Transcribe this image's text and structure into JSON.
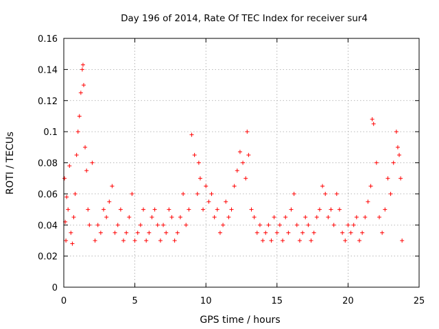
{
  "chart_data": {
    "type": "scatter",
    "title": "Day 196 of 2014, Rate Of TEC Index for receiver sur4",
    "xlabel": "GPS time / hours",
    "ylabel": "ROTI / TECUs",
    "xlim": [
      0,
      25
    ],
    "ylim": [
      0,
      0.16
    ],
    "xticks": [
      "0",
      "5",
      "10",
      "15",
      "20",
      "25"
    ],
    "yticks": [
      "0",
      "0.02",
      "0.04",
      "0.06",
      "0.08",
      "0.1",
      "0.12",
      "0.14",
      "0.16"
    ],
    "grid": true,
    "marker": "+",
    "color": "#ff0000",
    "series": [
      {
        "x": [
          0.05,
          0.1,
          0.15,
          0.2,
          0.3,
          0.4,
          0.5,
          0.6,
          0.7,
          0.8,
          0.9,
          1.0,
          1.1,
          1.2,
          1.3,
          1.35,
          1.4,
          1.5,
          1.6,
          1.7,
          1.8,
          2.0,
          2.2,
          2.4,
          2.6,
          2.8,
          3.0,
          3.2,
          3.4,
          3.6,
          3.8,
          4.0,
          4.2,
          4.4,
          4.6,
          4.8,
          5.0,
          5.2,
          5.4,
          5.6,
          5.8,
          6.0,
          6.2,
          6.4,
          6.6,
          6.8,
          7.0,
          7.2,
          7.4,
          7.6,
          7.8,
          8.0,
          8.2,
          8.4,
          8.6,
          8.8,
          9.0,
          9.2,
          9.4,
          9.5,
          9.6,
          9.8,
          10.0,
          10.2,
          10.4,
          10.6,
          10.8,
          11.0,
          11.2,
          11.4,
          11.6,
          11.8,
          12.0,
          12.2,
          12.4,
          12.6,
          12.8,
          12.9,
          13.0,
          13.2,
          13.4,
          13.6,
          13.8,
          14.0,
          14.2,
          14.4,
          14.6,
          14.8,
          15.0,
          15.2,
          15.4,
          15.6,
          15.8,
          16.0,
          16.2,
          16.4,
          16.6,
          16.8,
          17.0,
          17.2,
          17.4,
          17.6,
          17.8,
          18.0,
          18.2,
          18.4,
          18.6,
          18.8,
          19.0,
          19.2,
          19.4,
          19.6,
          19.8,
          20.0,
          20.2,
          20.4,
          20.6,
          20.8,
          21.0,
          21.2,
          21.4,
          21.6,
          21.7,
          21.8,
          22.0,
          22.2,
          22.4,
          22.6,
          22.8,
          23.0,
          23.2,
          23.4,
          23.5,
          23.6,
          23.7,
          23.8
        ],
        "y": [
          0.07,
          0.042,
          0.03,
          0.058,
          0.05,
          0.078,
          0.035,
          0.028,
          0.045,
          0.06,
          0.085,
          0.1,
          0.11,
          0.125,
          0.14,
          0.143,
          0.13,
          0.09,
          0.075,
          0.05,
          0.04,
          0.08,
          0.03,
          0.04,
          0.035,
          0.05,
          0.045,
          0.055,
          0.065,
          0.035,
          0.04,
          0.05,
          0.03,
          0.035,
          0.045,
          0.06,
          0.03,
          0.035,
          0.04,
          0.05,
          0.03,
          0.035,
          0.045,
          0.05,
          0.04,
          0.03,
          0.04,
          0.035,
          0.05,
          0.045,
          0.03,
          0.035,
          0.045,
          0.06,
          0.04,
          0.05,
          0.098,
          0.085,
          0.06,
          0.08,
          0.07,
          0.05,
          0.065,
          0.055,
          0.06,
          0.045,
          0.05,
          0.035,
          0.04,
          0.055,
          0.045,
          0.05,
          0.065,
          0.075,
          0.087,
          0.08,
          0.07,
          0.1,
          0.085,
          0.05,
          0.045,
          0.035,
          0.04,
          0.03,
          0.035,
          0.04,
          0.03,
          0.045,
          0.035,
          0.04,
          0.03,
          0.045,
          0.035,
          0.05,
          0.06,
          0.04,
          0.03,
          0.035,
          0.045,
          0.04,
          0.03,
          0.035,
          0.045,
          0.05,
          0.065,
          0.06,
          0.045,
          0.05,
          0.04,
          0.06,
          0.05,
          0.035,
          0.03,
          0.04,
          0.035,
          0.04,
          0.045,
          0.03,
          0.035,
          0.045,
          0.055,
          0.065,
          0.108,
          0.105,
          0.08,
          0.045,
          0.035,
          0.05,
          0.07,
          0.06,
          0.08,
          0.1,
          0.09,
          0.085,
          0.07,
          0.03
        ]
      }
    ]
  }
}
